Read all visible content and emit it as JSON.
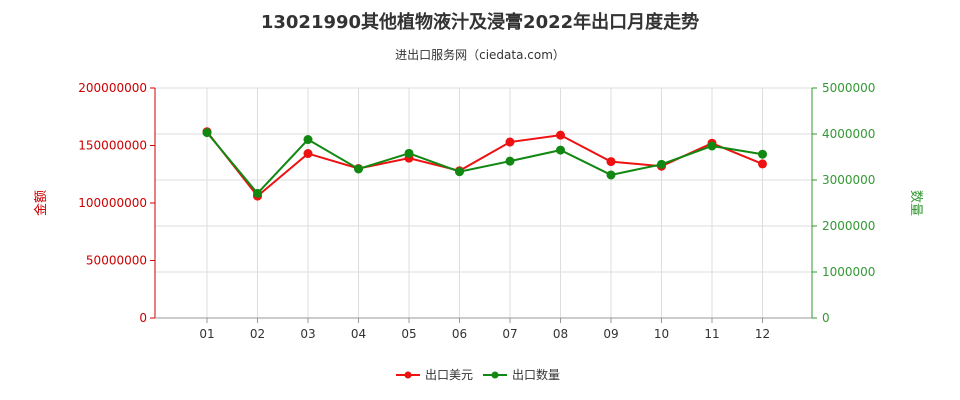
{
  "chart_data": {
    "type": "line",
    "title": "13021990其他植物液汁及浸膏2022年出口月度走势",
    "subtitle": "进出口服务网（ciedata.com）",
    "categories": [
      "01",
      "02",
      "03",
      "04",
      "05",
      "06",
      "07",
      "08",
      "09",
      "10",
      "11",
      "12"
    ],
    "y_left": {
      "label": "金额",
      "range": [
        0,
        200000000
      ],
      "ticks": [
        "0",
        "50000000",
        "100000000",
        "150000000",
        "200000000"
      ],
      "color": "#cc0000"
    },
    "y_right": {
      "label": "数量",
      "range": [
        0,
        5000000
      ],
      "ticks": [
        "0",
        "1000000",
        "2000000",
        "3000000",
        "4000000",
        "5000000"
      ],
      "color": "#339933"
    },
    "series": [
      {
        "name": "出口美元",
        "axis": "left",
        "color": "#ee1111",
        "values": [
          162000000,
          106000000,
          143000000,
          130000000,
          139000000,
          128000000,
          153000000,
          159000000,
          136000000,
          132000000,
          152000000,
          134000000
        ]
      },
      {
        "name": "出口数量",
        "axis": "right",
        "color": "#118811",
        "values": [
          4030000,
          2710000,
          3880000,
          3240000,
          3580000,
          3180000,
          3410000,
          3650000,
          3110000,
          3340000,
          3740000,
          3560000
        ]
      }
    ],
    "grid": true,
    "legend_position": "bottom"
  }
}
